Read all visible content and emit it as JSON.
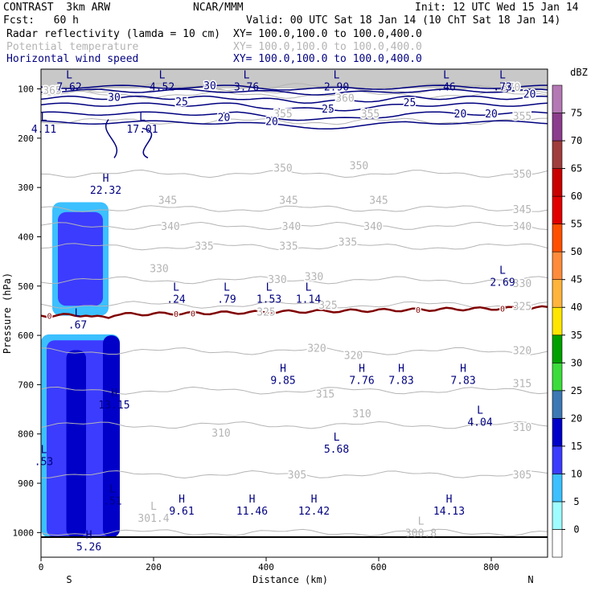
{
  "header": {
    "model": "CONTRAST  3km ARW",
    "org": "NCAR/MMM",
    "init": "Init: 12 UTC Wed 15 Jan 14",
    "fcst": "Fcst:   60 h",
    "valid": "Valid: 00 UTC Sat 18 Jan 14 (10 ChT Sat 18 Jan 14)",
    "fields": [
      {
        "name": "Radar reflectivity (lamda = 10 cm)",
        "xy": "XY= 100.0,100.0 to 100.0,400.0",
        "color": "#000000"
      },
      {
        "name": "Potential temperature",
        "xy": "XY= 100.0,100.0 to 100.0,400.0",
        "color": "#b4b4b4"
      },
      {
        "name": "Horizontal wind speed",
        "xy": "XY= 100.0,100.0 to 100.0,400.0",
        "color": "#000080"
      }
    ]
  },
  "chart_data": {
    "type": "heatmap",
    "xlabel": "Distance (km)",
    "ylabel": "Pressure (hPa)",
    "xlim": [
      0,
      900
    ],
    "ylim": [
      60,
      1050
    ],
    "x_ticks": [
      0,
      200,
      400,
      600,
      800
    ],
    "y_ticks": [
      100,
      200,
      300,
      400,
      500,
      600,
      700,
      800,
      900,
      1000
    ],
    "x_end_labels": {
      "left": "S",
      "right": "N"
    },
    "colorbar": {
      "unit": "dBZ",
      "levels": [
        0,
        5,
        10,
        15,
        20,
        25,
        30,
        35,
        40,
        45,
        50,
        55,
        60,
        65,
        70,
        75
      ],
      "colors": [
        "#ffffff",
        "#9ffcff",
        "#3cc0ff",
        "#3c3cff",
        "#0000c8",
        "#3c78b4",
        "#3cdc3c",
        "#00a000",
        "#ffe600",
        "#ffb43c",
        "#ff8c3c",
        "#ff5000",
        "#e10000",
        "#c80000",
        "#a03c3c",
        "#8c3c8c",
        "#b478b4"
      ]
    },
    "theta_levels": [
      {
        "value": 300,
        "p": 1000
      },
      {
        "value": 305,
        "p": 882
      },
      {
        "value": 310,
        "p": 782
      },
      {
        "value": 315,
        "p": 712
      },
      {
        "value": 320,
        "p": 632
      },
      {
        "value": 325,
        "p": 538
      },
      {
        "value": 330,
        "p": 488
      },
      {
        "value": 335,
        "p": 420
      },
      {
        "value": 340,
        "p": 378
      },
      {
        "value": 345,
        "p": 343
      },
      {
        "value": 350,
        "p": 272
      },
      {
        "value": 355,
        "p": 166
      },
      {
        "value": 360,
        "p": 112
      },
      {
        "value": 365,
        "p": 102
      },
      {
        "value": 370,
        "p": 96
      }
    ],
    "theta_labels": [
      {
        "text": "305",
        "x": 455,
        "p": 882
      },
      {
        "text": "305",
        "x": 855,
        "p": 882
      },
      {
        "text": "310",
        "x": 320,
        "p": 797
      },
      {
        "text": "310",
        "x": 570,
        "p": 758
      },
      {
        "text": "310",
        "x": 855,
        "p": 786
      },
      {
        "text": "315",
        "x": 505,
        "p": 718
      },
      {
        "text": "315",
        "x": 855,
        "p": 697
      },
      {
        "text": "320",
        "x": 490,
        "p": 625
      },
      {
        "text": "320",
        "x": 555,
        "p": 640
      },
      {
        "text": "320",
        "x": 855,
        "p": 630
      },
      {
        "text": "325",
        "x": 400,
        "p": 552
      },
      {
        "text": "325",
        "x": 510,
        "p": 538
      },
      {
        "text": "325",
        "x": 855,
        "p": 540
      },
      {
        "text": "330",
        "x": 210,
        "p": 464
      },
      {
        "text": "330",
        "x": 420,
        "p": 486
      },
      {
        "text": "330",
        "x": 485,
        "p": 480
      },
      {
        "text": "330",
        "x": 855,
        "p": 494
      },
      {
        "text": "335",
        "x": 290,
        "p": 418
      },
      {
        "text": "335",
        "x": 440,
        "p": 418
      },
      {
        "text": "335",
        "x": 545,
        "p": 410
      },
      {
        "text": "340",
        "x": 230,
        "p": 378
      },
      {
        "text": "340",
        "x": 445,
        "p": 378
      },
      {
        "text": "340",
        "x": 590,
        "p": 378
      },
      {
        "text": "340",
        "x": 855,
        "p": 378
      },
      {
        "text": "345",
        "x": 225,
        "p": 325
      },
      {
        "text": "345",
        "x": 440,
        "p": 325
      },
      {
        "text": "345",
        "x": 600,
        "p": 325
      },
      {
        "text": "345",
        "x": 855,
        "p": 344
      },
      {
        "text": "350",
        "x": 430,
        "p": 260
      },
      {
        "text": "350",
        "x": 565,
        "p": 255
      },
      {
        "text": "350",
        "x": 855,
        "p": 272
      },
      {
        "text": "355",
        "x": 430,
        "p": 150
      },
      {
        "text": "355",
        "x": 585,
        "p": 150
      },
      {
        "text": "355",
        "x": 855,
        "p": 155
      },
      {
        "text": "360",
        "x": 540,
        "p": 118
      },
      {
        "text": "365",
        "x": 20,
        "p": 102
      },
      {
        "text": "370",
        "x": 835,
        "p": 96
      }
    ],
    "wind_labels": [
      {
        "text": "30",
        "x": 130,
        "p": 116
      },
      {
        "text": "30",
        "x": 300,
        "p": 93
      },
      {
        "text": "25",
        "x": 250,
        "p": 125
      },
      {
        "text": "25",
        "x": 510,
        "p": 140
      },
      {
        "text": "25",
        "x": 655,
        "p": 127
      },
      {
        "text": "20",
        "x": 325,
        "p": 157
      },
      {
        "text": "20",
        "x": 410,
        "p": 165
      },
      {
        "text": "20",
        "x": 745,
        "p": 150
      },
      {
        "text": "20",
        "x": 800,
        "p": 150
      },
      {
        "text": "20",
        "x": 868,
        "p": 110
      }
    ],
    "freezing_level": {
      "label": "0",
      "p_mean": 560
    },
    "extrema": [
      {
        "kind": "L",
        "value": "7.62",
        "x": 50,
        "p": 82,
        "color": "#000080"
      },
      {
        "kind": "L",
        "value": "4.52",
        "x": 215,
        "p": 82,
        "color": "#000080"
      },
      {
        "kind": "L",
        "value": "3.76",
        "x": 365,
        "p": 82,
        "color": "#000080"
      },
      {
        "kind": "L",
        "value": "2.90",
        "x": 525,
        "p": 82,
        "color": "#000080"
      },
      {
        "kind": "L",
        "value": ".46",
        "x": 720,
        "p": 82,
        "color": "#000080"
      },
      {
        "kind": "L",
        "value": ".73",
        "x": 820,
        "p": 82,
        "color": "#000080"
      },
      {
        "kind": "L",
        "value": "4.11",
        "x": 5,
        "p": 168,
        "color": "#000080"
      },
      {
        "kind": "L",
        "value": "17.01",
        "x": 180,
        "p": 168,
        "color": "#000080"
      },
      {
        "kind": "H",
        "value": "22.32",
        "x": 115,
        "p": 292,
        "color": "#000080"
      },
      {
        "kind": "L",
        "value": "2.69",
        "x": 820,
        "p": 478,
        "color": "#000080"
      },
      {
        "kind": "L",
        "value": ".24",
        "x": 240,
        "p": 513,
        "color": "#000080"
      },
      {
        "kind": "L",
        "value": ".79",
        "x": 330,
        "p": 513,
        "color": "#000080"
      },
      {
        "kind": "L",
        "value": "1.53",
        "x": 405,
        "p": 513,
        "color": "#000080"
      },
      {
        "kind": "L",
        "value": "1.14",
        "x": 475,
        "p": 513,
        "color": "#000080"
      },
      {
        "kind": "L",
        "value": ".67",
        "x": 65,
        "p": 565,
        "color": "#000080"
      },
      {
        "kind": "H",
        "value": "9.85",
        "x": 430,
        "p": 677,
        "color": "#000080"
      },
      {
        "kind": "H",
        "value": "7.76",
        "x": 570,
        "p": 677,
        "color": "#000080"
      },
      {
        "kind": "H",
        "value": "7.83",
        "x": 640,
        "p": 677,
        "color": "#000080"
      },
      {
        "kind": "H",
        "value": "7.83",
        "x": 750,
        "p": 677,
        "color": "#000080"
      },
      {
        "kind": "H",
        "value": "13.15",
        "x": 130,
        "p": 727,
        "color": "#000080"
      },
      {
        "kind": "L",
        "value": "4.04",
        "x": 780,
        "p": 762,
        "color": "#000080"
      },
      {
        "kind": "L",
        "value": "5.68",
        "x": 525,
        "p": 817,
        "color": "#000080"
      },
      {
        "kind": "L",
        "value": ".53",
        "x": 5,
        "p": 842,
        "color": "#000080"
      },
      {
        "kind": "L",
        "value": ".51",
        "x": 127,
        "p": 922,
        "color": "#000080"
      },
      {
        "kind": "H",
        "value": "9.61",
        "x": 250,
        "p": 942,
        "color": "#000080"
      },
      {
        "kind": "H",
        "value": "11.46",
        "x": 375,
        "p": 942,
        "color": "#000080"
      },
      {
        "kind": "H",
        "value": "12.42",
        "x": 485,
        "p": 942,
        "color": "#000080"
      },
      {
        "kind": "H",
        "value": "14.13",
        "x": 725,
        "p": 942,
        "color": "#000080"
      },
      {
        "kind": "L",
        "value": "301.4",
        "x": 200,
        "p": 957,
        "color": "#b4b4b4"
      },
      {
        "kind": "L",
        "value": "300.8",
        "x": 675,
        "p": 987,
        "color": "#b4b4b4"
      },
      {
        "kind": "H",
        "value": "5.26",
        "x": 85,
        "p": 1015,
        "color": "#000080"
      }
    ],
    "reflectivity_cells": [
      {
        "x": [
          20,
          120
        ],
        "p": [
          330,
          560
        ],
        "dbz": 5
      },
      {
        "x": [
          30,
          110
        ],
        "p": [
          350,
          540
        ],
        "dbz": 10
      },
      {
        "x": [
          0,
          140
        ],
        "p": [
          598,
          1010
        ],
        "dbz": 5
      },
      {
        "x": [
          10,
          130
        ],
        "p": [
          610,
          1010
        ],
        "dbz": 10
      },
      {
        "x": [
          45,
          80
        ],
        "p": [
          630,
          1010
        ],
        "dbz": 15
      },
      {
        "x": [
          110,
          140
        ],
        "p": [
          600,
          1010
        ],
        "dbz": 15
      }
    ]
  }
}
